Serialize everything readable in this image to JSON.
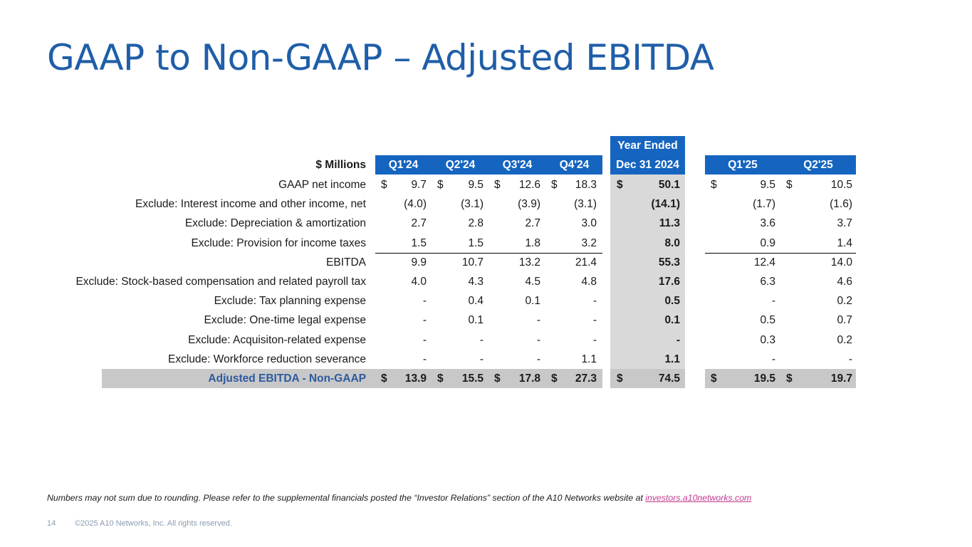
{
  "title": "GAAP to Non-GAAP – Adjusted EBITDA",
  "table": {
    "unit_header": "$ Millions",
    "quarter_headers_2024": [
      "Q1'24",
      "Q2'24",
      "Q3'24",
      "Q4'24"
    ],
    "year_header_line1": "Year Ended",
    "year_header_line2": "Dec 31 2024",
    "quarter_headers_2025": [
      "Q1'25",
      "Q2'25"
    ],
    "currency_symbol": "$",
    "rows": [
      {
        "label": "GAAP net income",
        "q2024": [
          "9.7",
          "9.5",
          "12.6",
          "18.3"
        ],
        "year": "50.1",
        "q2025": [
          "9.5",
          "10.5"
        ],
        "currency": true
      },
      {
        "label": "Exclude:  Interest income and other income, net",
        "q2024": [
          "(4.0)",
          "(3.1)",
          "(3.9)",
          "(3.1)"
        ],
        "year": "(14.1)",
        "q2025": [
          "(1.7)",
          "(1.6)"
        ]
      },
      {
        "label": "Exclude:  Depreciation & amortization",
        "q2024": [
          "2.7",
          "2.8",
          "2.7",
          "3.0"
        ],
        "year": "11.3",
        "q2025": [
          "3.6",
          "3.7"
        ]
      },
      {
        "label": "Exclude:  Provision for income taxes",
        "q2024": [
          "1.5",
          "1.5",
          "1.8",
          "3.2"
        ],
        "year": "8.0",
        "q2025": [
          "0.9",
          "1.4"
        ]
      },
      {
        "label": "EBITDA",
        "q2024": [
          "9.9",
          "10.7",
          "13.2",
          "21.4"
        ],
        "year": "55.3",
        "q2025": [
          "12.4",
          "14.0"
        ]
      },
      {
        "label": "Exclude:  Stock-based compensation and related payroll tax",
        "q2024": [
          "4.0",
          "4.3",
          "4.5",
          "4.8"
        ],
        "year": "17.6",
        "q2025": [
          "6.3",
          "4.6"
        ]
      },
      {
        "label": "Exclude:  Tax planning expense",
        "q2024": [
          "-",
          "0.4",
          "0.1",
          "-"
        ],
        "year": "0.5",
        "q2025": [
          "-",
          "0.2"
        ]
      },
      {
        "label": "Exclude: One-time legal expense",
        "q2024": [
          "-",
          "0.1",
          "-",
          "-"
        ],
        "year": "0.1",
        "q2025": [
          "0.5",
          "0.7"
        ]
      },
      {
        "label": "Exclude: Acquisiton-related expense",
        "q2024": [
          "-",
          "-",
          "-",
          "-"
        ],
        "year": "-",
        "q2025": [
          "0.3",
          "0.2"
        ]
      },
      {
        "label": "Exclude: Workforce reduction severance",
        "q2024": [
          "-",
          "-",
          "-",
          "1.1"
        ],
        "year": "1.1",
        "q2025": [
          "-",
          "-"
        ]
      },
      {
        "label": "Adjusted EBITDA - Non-GAAP",
        "q2024": [
          "13.9",
          "15.5",
          "17.8",
          "27.3"
        ],
        "year": "74.5",
        "q2025": [
          "19.5",
          "19.7"
        ],
        "currency": true,
        "total": true
      }
    ]
  },
  "footnote": {
    "text": "Numbers may not sum due to rounding. Please refer to the supplemental financials posted the “Investor Relations” section of the A10 Networks website at ",
    "link": "investors.a10networks.com"
  },
  "footer": {
    "page_number": "14",
    "copyright": "©2025 A10 Networks, Inc. All rights reserved."
  },
  "colors": {
    "title": "#1f5ea8",
    "header_bg": "#1565c0",
    "year_bg": "#d9d9d9",
    "total_bg": "#c8c8c8",
    "total_label": "#2d5aa0",
    "link": "#c0398d"
  }
}
